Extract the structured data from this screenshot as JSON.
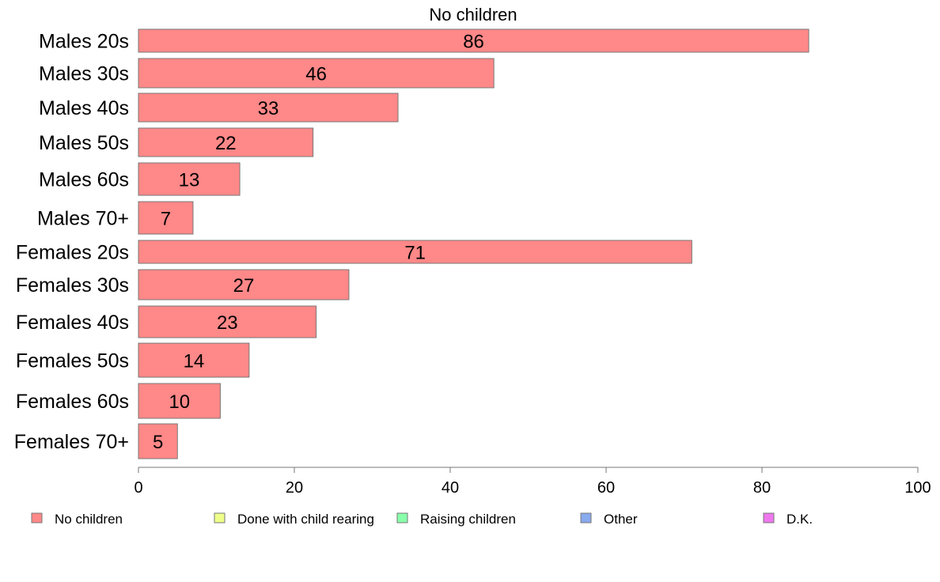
{
  "chart_data": {
    "type": "bar",
    "orientation": "horizontal",
    "title": "No children",
    "xlabel": "",
    "ylabel": "",
    "xlim": [
      0,
      100
    ],
    "x_ticks": [
      0,
      20,
      40,
      60,
      80,
      100
    ],
    "grid": false,
    "categories": [
      "Males 20s",
      "Males 30s",
      "Males 40s",
      "Males 50s",
      "Males 60s",
      "Males 70+",
      "Females 20s",
      "Females 30s",
      "Females 40s",
      "Females 50s",
      "Females 60s",
      "Females 70+"
    ],
    "series": [
      {
        "name": "No children",
        "color": "#ff8888",
        "values": [
          86,
          45.6,
          33.3,
          22.4,
          13,
          7,
          71,
          27,
          22.8,
          14.2,
          10.5,
          5
        ],
        "labels": [
          "86",
          "46",
          "33",
          "22",
          "13",
          "7",
          "71",
          "27",
          "23",
          "14",
          "10",
          "5"
        ]
      }
    ],
    "legend": {
      "placement": "bottom",
      "entries": [
        {
          "label": "No children",
          "color": "#ff8888"
        },
        {
          "label": "Done with child rearing",
          "color": "#eeff88"
        },
        {
          "label": "Raising children",
          "color": "#88ffaa"
        },
        {
          "label": "Other",
          "color": "#88aaee"
        },
        {
          "label": "D.K.",
          "color": "#ee77ee"
        }
      ]
    }
  }
}
